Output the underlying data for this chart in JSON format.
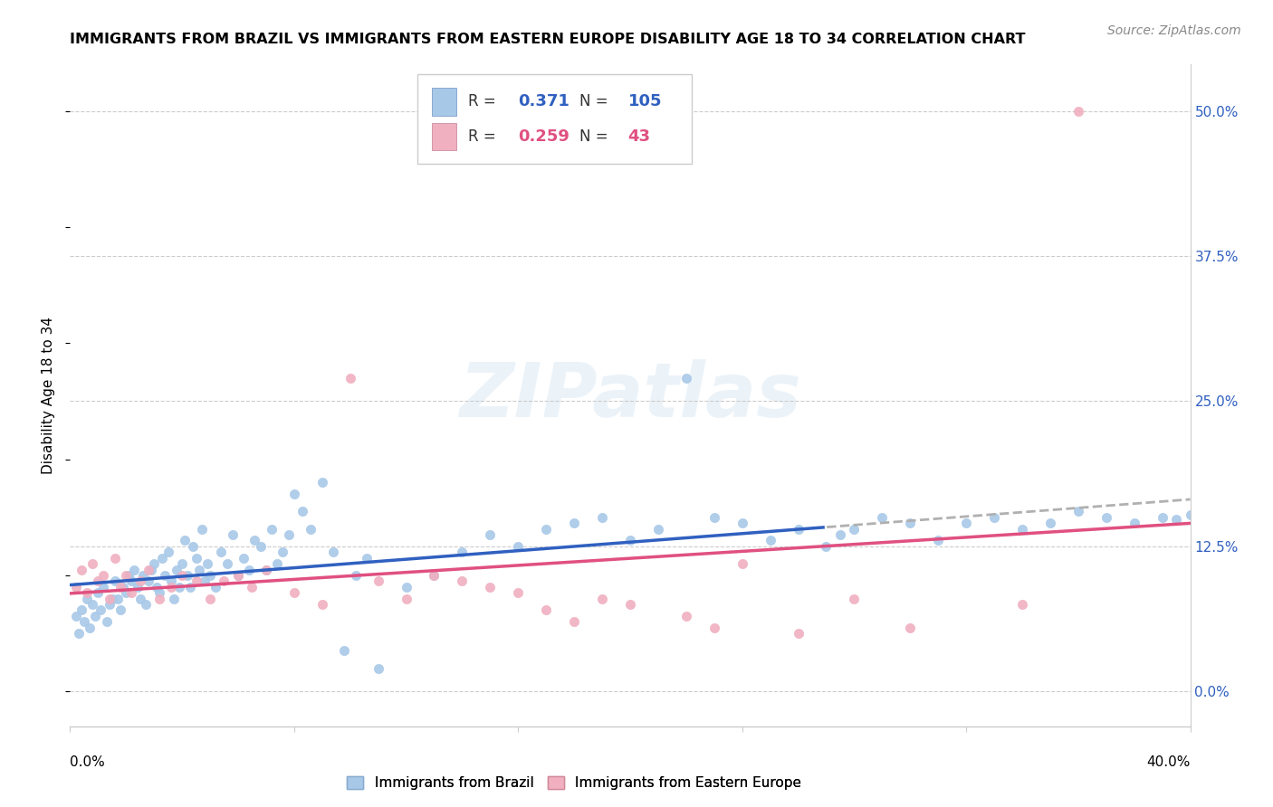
{
  "title": "IMMIGRANTS FROM BRAZIL VS IMMIGRANTS FROM EASTERN EUROPE DISABILITY AGE 18 TO 34 CORRELATION CHART",
  "source": "Source: ZipAtlas.com",
  "ylabel": "Disability Age 18 to 34",
  "ytick_values": [
    0.0,
    12.5,
    25.0,
    37.5,
    50.0
  ],
  "xlim": [
    0.0,
    40.0
  ],
  "ylim": [
    -3.0,
    54.0
  ],
  "brazil_R": 0.371,
  "brazil_N": 105,
  "eastern_europe_R": 0.259,
  "eastern_europe_N": 43,
  "brazil_color": "#a8c8e8",
  "eastern_europe_color": "#f0b0c0",
  "brazil_trend_color": "#3060c0",
  "eastern_europe_trend_color": "#e05080",
  "brazil_dashed_color": "#b0b0b0",
  "watermark": "ZIPatlas",
  "brazil_scatter_x": [
    0.2,
    0.3,
    0.4,
    0.5,
    0.6,
    0.7,
    0.8,
    0.9,
    1.0,
    1.1,
    1.2,
    1.3,
    1.4,
    1.5,
    1.6,
    1.7,
    1.8,
    1.9,
    2.0,
    2.1,
    2.2,
    2.3,
    2.4,
    2.5,
    2.6,
    2.7,
    2.8,
    2.9,
    3.0,
    3.1,
    3.2,
    3.3,
    3.4,
    3.5,
    3.6,
    3.7,
    3.8,
    3.9,
    4.0,
    4.1,
    4.2,
    4.3,
    4.4,
    4.5,
    4.6,
    4.7,
    4.8,
    4.9,
    5.0,
    5.2,
    5.4,
    5.6,
    5.8,
    6.0,
    6.2,
    6.4,
    6.6,
    6.8,
    7.0,
    7.2,
    7.4,
    7.6,
    7.8,
    8.0,
    8.3,
    8.6,
    9.0,
    9.4,
    9.8,
    10.2,
    10.6,
    11.0,
    12.0,
    13.0,
    14.0,
    15.0,
    16.0,
    17.0,
    18.0,
    19.0,
    20.0,
    21.0,
    22.0,
    23.0,
    24.0,
    25.0,
    26.0,
    27.0,
    27.5,
    28.0,
    29.0,
    30.0,
    31.0,
    32.0,
    33.0,
    34.0,
    35.0,
    36.0,
    37.0,
    38.0,
    39.0,
    39.5,
    40.0,
    40.5,
    41.0
  ],
  "brazil_scatter_y": [
    6.5,
    5.0,
    7.0,
    6.0,
    8.0,
    5.5,
    7.5,
    6.5,
    8.5,
    7.0,
    9.0,
    6.0,
    7.5,
    8.0,
    9.5,
    8.0,
    7.0,
    9.0,
    8.5,
    10.0,
    9.5,
    10.5,
    9.0,
    8.0,
    10.0,
    7.5,
    9.5,
    10.5,
    11.0,
    9.0,
    8.5,
    11.5,
    10.0,
    12.0,
    9.5,
    8.0,
    10.5,
    9.0,
    11.0,
    13.0,
    10.0,
    9.0,
    12.5,
    11.5,
    10.5,
    14.0,
    9.5,
    11.0,
    10.0,
    9.0,
    12.0,
    11.0,
    13.5,
    10.0,
    11.5,
    10.5,
    13.0,
    12.5,
    10.5,
    14.0,
    11.0,
    12.0,
    13.5,
    17.0,
    15.5,
    14.0,
    18.0,
    12.0,
    3.5,
    10.0,
    11.5,
    2.0,
    9.0,
    10.0,
    12.0,
    13.5,
    12.5,
    14.0,
    14.5,
    15.0,
    13.0,
    14.0,
    27.0,
    15.0,
    14.5,
    13.0,
    14.0,
    12.5,
    13.5,
    14.0,
    15.0,
    14.5,
    13.0,
    14.5,
    15.0,
    14.0,
    14.5,
    15.5,
    15.0,
    14.5,
    15.0,
    14.8,
    15.2,
    15.5,
    15.8
  ],
  "eastern_scatter_x": [
    0.2,
    0.4,
    0.6,
    0.8,
    1.0,
    1.2,
    1.4,
    1.6,
    1.8,
    2.0,
    2.2,
    2.5,
    2.8,
    3.2,
    3.6,
    4.0,
    4.5,
    5.0,
    5.5,
    6.0,
    6.5,
    7.0,
    8.0,
    9.0,
    10.0,
    11.0,
    12.0,
    13.0,
    14.0,
    15.0,
    16.0,
    17.0,
    18.0,
    19.0,
    20.0,
    22.0,
    23.0,
    24.0,
    26.0,
    28.0,
    30.0,
    34.0,
    36.0
  ],
  "eastern_scatter_y": [
    9.0,
    10.5,
    8.5,
    11.0,
    9.5,
    10.0,
    8.0,
    11.5,
    9.0,
    10.0,
    8.5,
    9.5,
    10.5,
    8.0,
    9.0,
    10.0,
    9.5,
    8.0,
    9.5,
    10.0,
    9.0,
    10.5,
    8.5,
    7.5,
    27.0,
    9.5,
    8.0,
    10.0,
    9.5,
    9.0,
    8.5,
    7.0,
    6.0,
    8.0,
    7.5,
    6.5,
    5.5,
    11.0,
    5.0,
    8.0,
    5.5,
    7.5,
    50.0
  ]
}
